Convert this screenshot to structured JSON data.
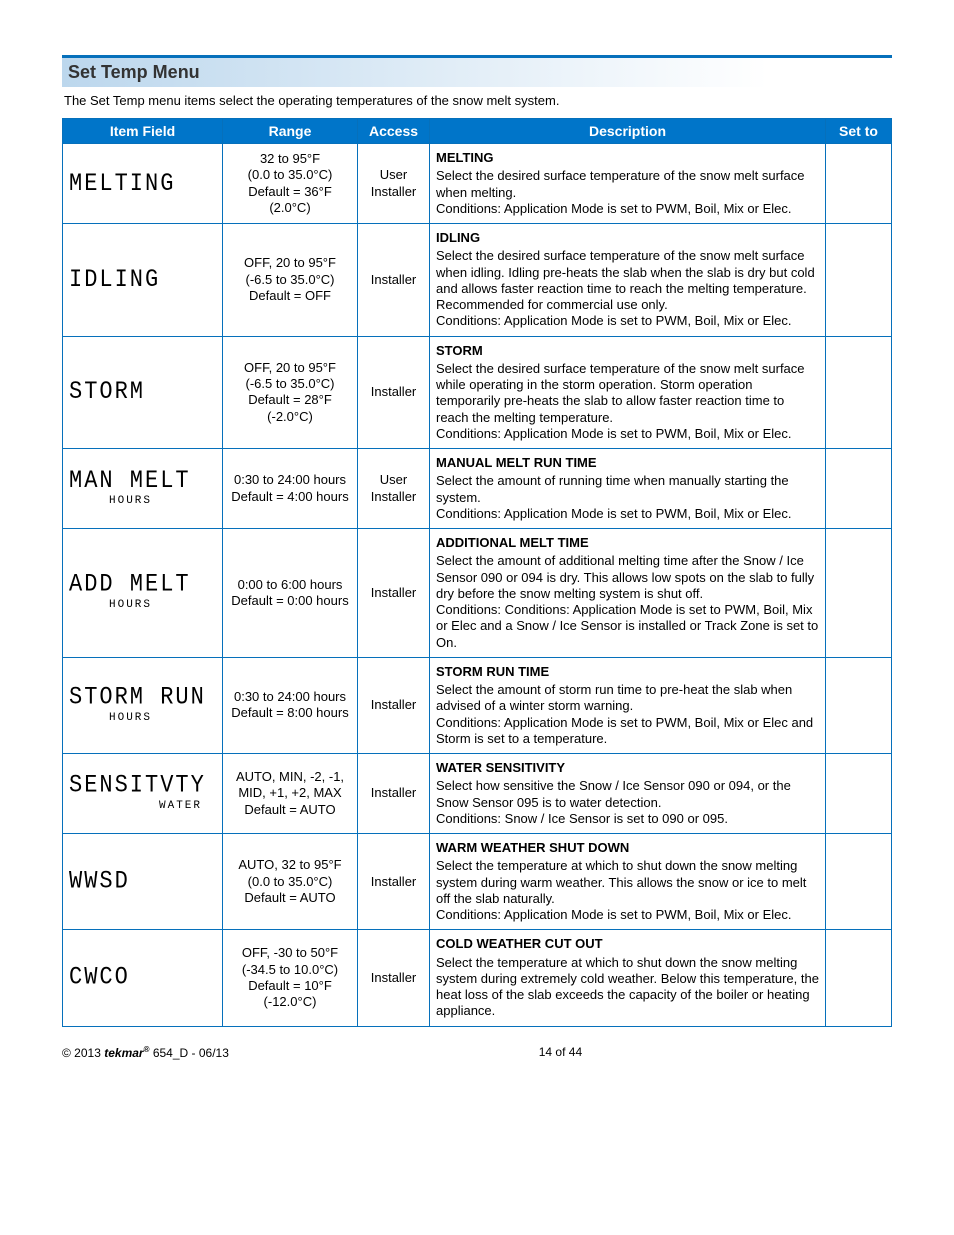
{
  "section_title": "Set Temp Menu",
  "intro": "The Set Temp menu items select the operating temperatures of the snow melt system.",
  "columns": {
    "item": "Item Field",
    "range": "Range",
    "access": "Access",
    "desc": "Description",
    "setto": "Set to"
  },
  "rows": [
    {
      "lcd": "MELTING",
      "sub": "",
      "range": "32 to 95°F\n(0.0 to 35.0°C)\nDefault = 36°F\n(2.0°C)",
      "access": "User\nInstaller",
      "title": "MELTING",
      "desc": "Select the desired surface temperature of the snow melt surface when melting.\nConditions: Application Mode is set to PWM, Boil, Mix or Elec."
    },
    {
      "lcd": "IDLING",
      "sub": "",
      "range": "OFF, 20 to 95°F\n(-6.5 to 35.0°C)\nDefault = OFF",
      "access": "Installer",
      "title": "IDLING",
      "desc": "Select the desired surface temperature of the snow melt surface when idling. Idling pre-heats the slab when the slab is dry but cold and allows faster reaction time to reach the melting temperature. Recommended for commercial use only.\nConditions: Application Mode is set to PWM, Boil, Mix or Elec."
    },
    {
      "lcd": "STORM",
      "sub": "",
      "range": "OFF, 20 to 95°F\n(-6.5 to 35.0°C)\nDefault = 28°F\n(-2.0°C)",
      "access": "Installer",
      "title": "STORM",
      "desc": "Select the desired surface temperature of the snow melt surface while operating in the storm operation. Storm operation temporarily pre-heats the slab to allow faster reaction time to reach the melting temperature.\nConditions: Application Mode is set to PWM, Boil, Mix or Elec."
    },
    {
      "lcd": "MAN MELT",
      "sub": "HOURS",
      "range": "0:30 to 24:00 hours\nDefault = 4:00 hours",
      "access": "User\nInstaller",
      "title": "MANUAL MELT RUN TIME",
      "desc": "Select the amount of running time when manually starting the system.\nConditions: Application Mode is set to PWM, Boil, Mix or Elec."
    },
    {
      "lcd": "ADD MELT",
      "sub": "HOURS",
      "range": "0:00 to 6:00 hours\nDefault = 0:00 hours",
      "access": "Installer",
      "title": "ADDITIONAL MELT TIME",
      "desc": "Select the amount of additional melting time after the Snow / Ice Sensor 090 or 094 is dry. This allows low spots on the slab to fully dry before the snow melting system is shut off.\nConditions: Conditions: Application Mode is set to PWM, Boil, Mix or Elec and a Snow / Ice Sensor is installed or Track Zone is set to On."
    },
    {
      "lcd": "STORM RUN",
      "sub": "HOURS",
      "range": "0:30 to 24:00 hours\nDefault = 8:00 hours",
      "access": "Installer",
      "title": "STORM RUN TIME",
      "desc": "Select the amount of storm run time to pre-heat the slab when advised of a winter storm warning.\nConditions: Application Mode is set to PWM, Boil, Mix or Elec and Storm is set to a temperature."
    },
    {
      "lcd": "SENSITVTY",
      "sub": "WATER",
      "sub_align": "right",
      "range": "AUTO, MIN, -2, -1, MID, +1, +2, MAX\nDefault = AUTO",
      "access": "Installer",
      "title": "WATER SENSITIVITY",
      "desc": "Select how sensitive the Snow / Ice Sensor 090 or 094, or the Snow Sensor 095 is to water detection.\nConditions: Snow / Ice Sensor is set to 090 or 095."
    },
    {
      "lcd": "WWSD",
      "sub": "",
      "range": "AUTO, 32 to 95°F\n(0.0 to 35.0°C)\nDefault = AUTO",
      "access": "Installer",
      "title": "WARM WEATHER SHUT DOWN",
      "desc": "Select the temperature at which to shut down the snow melting system during warm weather. This allows the snow or ice to melt off the slab naturally.\nConditions: Application Mode is set to PWM, Boil, Mix or Elec."
    },
    {
      "lcd": "CWCO",
      "sub": "",
      "range": "OFF, -30 to 50°F\n(-34.5 to 10.0°C)\nDefault = 10°F\n(-12.0°C)",
      "access": "Installer",
      "title": "COLD WEATHER CUT OUT",
      "desc": "Select the temperature at which to shut down the snow melting system during extremely cold weather. Below this temperature, the heat loss of the slab exceeds the capacity of the boiler or heating appliance."
    }
  ],
  "footer": {
    "copyright_prefix": "© 2013 ",
    "brand": "tekmar",
    "doc": " 654_D - 06/13",
    "page": "14 of 44"
  }
}
